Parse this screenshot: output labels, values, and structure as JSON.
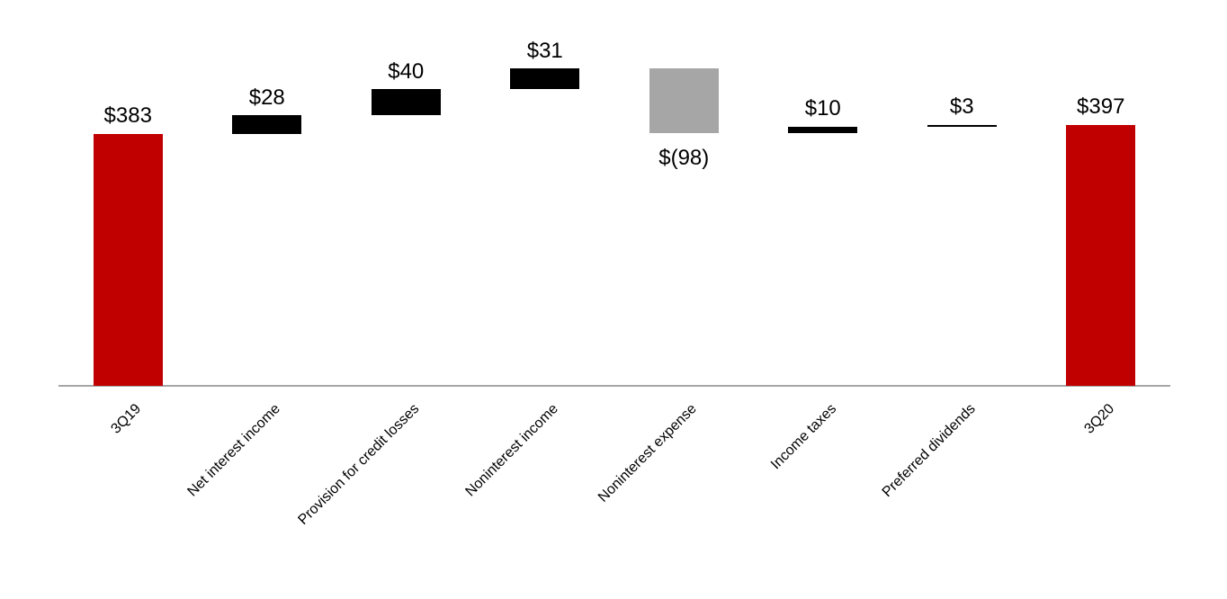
{
  "chart_data": {
    "type": "bar",
    "subtype": "waterfall",
    "title": "",
    "categories": [
      "3Q19",
      "Net interest income",
      "Provision for credit losses",
      "Noninterest income",
      "Noninterest expense",
      "Income taxes",
      "Preferred dividends",
      "3Q20"
    ],
    "series": [
      {
        "name": "Earnings bridge",
        "steps": [
          {
            "category": "3Q19",
            "value": 383,
            "step_type": "total",
            "label": "$383",
            "label_position": "above"
          },
          {
            "category": "Net interest income",
            "value": 28,
            "step_type": "delta",
            "label": "$28",
            "label_position": "above"
          },
          {
            "category": "Provision for credit losses",
            "value": 40,
            "step_type": "delta",
            "label": "$40",
            "label_position": "above"
          },
          {
            "category": "Noninterest income",
            "value": 31,
            "step_type": "delta",
            "label": "$31",
            "label_position": "above"
          },
          {
            "category": "Noninterest expense",
            "value": -98,
            "step_type": "delta",
            "label": "$(98)",
            "label_position": "below"
          },
          {
            "category": "Income taxes",
            "value": 10,
            "step_type": "delta",
            "label": "$10",
            "label_position": "above"
          },
          {
            "category": "Preferred dividends",
            "value": 3,
            "step_type": "delta",
            "label": "$3",
            "label_position": "above"
          },
          {
            "category": "3Q20",
            "value": 397,
            "step_type": "total",
            "label": "$397",
            "label_position": "above"
          }
        ]
      }
    ],
    "colors": {
      "total_bar": "#c00000",
      "increase_bar": "#000000",
      "decrease_bar": "#a6a6a6",
      "axis_line": "#a6a6a6",
      "label_text": "#000000",
      "background": "#ffffff"
    },
    "layout_hints": {
      "gridlines": "off",
      "legend": "none",
      "y_axis_labels": "hidden",
      "x_label_rotation_deg": -45,
      "baseline_value": 0
    }
  }
}
